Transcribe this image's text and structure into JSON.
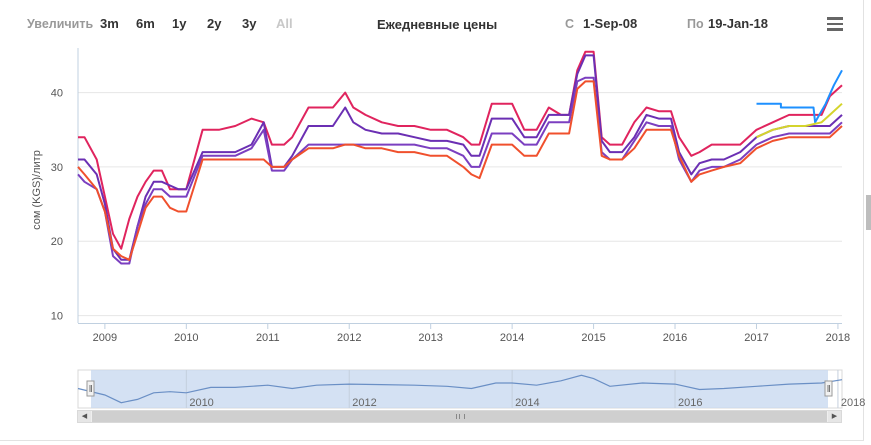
{
  "toolbar": {
    "zoom_label": "Увеличить",
    "ranges": [
      "3m",
      "6m",
      "1y",
      "2y",
      "3y",
      "All"
    ],
    "title": "Ежедневные цены",
    "from_label": "С",
    "from_value": "1-Sep-08",
    "to_label": "По",
    "to_value": "19-Jan-18"
  },
  "chart_data": {
    "type": "line",
    "title": "Ежедневные цены",
    "ylabel": "сом (KGS)/литр",
    "xlabel": "",
    "xlim": [
      2008.67,
      2018.05
    ],
    "ylim": [
      9,
      46
    ],
    "yticks": [
      10,
      20,
      30,
      40
    ],
    "x_tick_labels": [
      "2009",
      "2010",
      "2011",
      "2012",
      "2013",
      "2014",
      "2015",
      "2016",
      "2017",
      "2018"
    ],
    "x_tick_positions": [
      2009,
      2010,
      2011,
      2012,
      2013,
      2014,
      2015,
      2016,
      2017,
      2018
    ],
    "navigator_labels": [
      "2010",
      "2012",
      "2014",
      "2016",
      "2018"
    ],
    "navigator_positions": [
      2010,
      2012,
      2014,
      2016,
      2018
    ],
    "grid": true,
    "series": [
      {
        "color": "#e0245e",
        "x": [
          2008.67,
          2008.75,
          2008.9,
          2009.0,
          2009.1,
          2009.2,
          2009.3,
          2009.4,
          2009.5,
          2009.6,
          2009.7,
          2009.8,
          2009.9,
          2010.0,
          2010.2,
          2010.3,
          2010.4,
          2010.6,
          2010.8,
          2010.95,
          2011.05,
          2011.2,
          2011.3,
          2011.5,
          2011.6,
          2011.8,
          2011.95,
          2012.05,
          2012.2,
          2012.4,
          2012.6,
          2012.8,
          2013.0,
          2013.2,
          2013.4,
          2013.5,
          2013.6,
          2013.75,
          2013.85,
          2014.0,
          2014.15,
          2014.3,
          2014.45,
          2014.6,
          2014.7,
          2014.8,
          2014.9,
          2015.0,
          2015.1,
          2015.2,
          2015.35,
          2015.5,
          2015.65,
          2015.8,
          2015.95,
          2016.05,
          2016.2,
          2016.3,
          2016.45,
          2016.6,
          2016.8,
          2017.0,
          2017.2,
          2017.4,
          2017.6,
          2017.8,
          2017.9,
          2018.05
        ],
        "y": [
          34,
          34,
          31,
          26,
          21,
          19,
          23,
          26,
          28,
          29.5,
          29.5,
          27,
          27,
          27,
          35,
          35,
          35,
          35.5,
          36.5,
          36,
          33,
          33,
          34,
          38,
          38,
          38,
          40,
          38,
          37,
          36,
          35.5,
          35.5,
          35,
          35,
          34,
          33,
          33,
          38.5,
          38.5,
          38.5,
          35,
          35,
          38,
          37,
          37,
          43,
          45.5,
          45.5,
          34,
          33,
          33,
          36,
          38,
          37.5,
          37.5,
          34,
          31.5,
          32,
          33,
          33,
          33,
          35,
          36,
          37,
          37,
          37,
          39.5,
          41
        ]
      },
      {
        "color": "#6b2fb3",
        "x": [
          2008.67,
          2008.75,
          2008.9,
          2009.0,
          2009.1,
          2009.2,
          2009.3,
          2009.4,
          2009.5,
          2009.6,
          2009.7,
          2009.8,
          2009.9,
          2010.0,
          2010.2,
          2010.3,
          2010.4,
          2010.6,
          2010.8,
          2010.95,
          2011.05,
          2011.2,
          2011.3,
          2011.5,
          2011.6,
          2011.8,
          2011.95,
          2012.05,
          2012.2,
          2012.4,
          2012.6,
          2012.8,
          2013.0,
          2013.2,
          2013.4,
          2013.5,
          2013.6,
          2013.75,
          2013.85,
          2014.0,
          2014.15,
          2014.3,
          2014.45,
          2014.6,
          2014.7,
          2014.8,
          2014.9,
          2015.0,
          2015.1,
          2015.2,
          2015.35,
          2015.5,
          2015.65,
          2015.8,
          2015.95,
          2016.05,
          2016.2,
          2016.3,
          2016.45,
          2016.6,
          2016.8,
          2017.0,
          2017.2,
          2017.4,
          2017.6,
          2017.8,
          2017.9,
          2018.05
        ],
        "y": [
          31,
          31,
          29,
          25,
          19,
          17.5,
          17.5,
          22,
          26,
          28,
          28,
          27.5,
          27,
          27,
          32,
          32,
          32,
          32,
          33,
          36,
          30,
          30,
          31.5,
          35.5,
          35.5,
          35.5,
          38,
          36,
          35,
          34.5,
          34.5,
          34,
          33.5,
          33.5,
          33,
          31.5,
          31.5,
          36.5,
          36.5,
          36.5,
          34,
          34,
          37,
          37,
          37,
          42.5,
          45,
          45,
          33.5,
          32,
          32,
          34,
          37,
          36.5,
          36.5,
          32,
          29,
          30.5,
          31,
          31,
          32,
          34,
          35,
          35.5,
          35.5,
          35.5,
          35.5,
          37
        ]
      },
      {
        "color": "#7b3fc0",
        "x": [
          2008.67,
          2008.75,
          2008.9,
          2009.0,
          2009.1,
          2009.2,
          2009.3,
          2009.4,
          2009.5,
          2009.6,
          2009.7,
          2009.8,
          2009.9,
          2010.0,
          2010.2,
          2010.3,
          2010.4,
          2010.6,
          2010.8,
          2010.95,
          2011.05,
          2011.2,
          2011.3,
          2011.5,
          2011.6,
          2011.8,
          2011.95,
          2012.05,
          2012.2,
          2012.4,
          2012.6,
          2012.8,
          2013.0,
          2013.2,
          2013.4,
          2013.5,
          2013.6,
          2013.75,
          2013.85,
          2014.0,
          2014.15,
          2014.3,
          2014.45,
          2014.6,
          2014.7,
          2014.8,
          2014.9,
          2015.0,
          2015.1,
          2015.2,
          2015.35,
          2015.5,
          2015.65,
          2015.8,
          2015.95,
          2016.05,
          2016.2,
          2016.3,
          2016.45,
          2016.6,
          2016.8,
          2017.0,
          2017.2,
          2017.4,
          2017.6,
          2017.8,
          2017.9,
          2018.05
        ],
        "y": [
          29,
          28,
          27,
          24,
          18,
          17,
          17,
          22,
          25,
          27,
          27,
          26,
          26,
          26,
          31.5,
          31.5,
          31.5,
          31.5,
          32.5,
          35,
          29.5,
          29.5,
          31,
          33,
          33,
          33,
          33,
          33,
          33,
          33,
          33,
          33,
          32.5,
          32.5,
          31.5,
          30,
          30,
          34.5,
          34.5,
          34.5,
          33,
          33,
          36,
          36,
          36,
          41.5,
          42,
          42,
          32,
          31,
          31,
          33.5,
          36,
          35.5,
          35.5,
          31,
          28,
          29.5,
          30,
          30,
          31,
          33,
          34,
          34.5,
          34.5,
          34.5,
          34.5,
          36
        ]
      },
      {
        "color": "#f0502d",
        "x": [
          2008.67,
          2008.75,
          2008.9,
          2009.0,
          2009.1,
          2009.2,
          2009.3,
          2009.4,
          2009.5,
          2009.6,
          2009.7,
          2009.8,
          2009.9,
          2010.0,
          2010.2,
          2010.3,
          2010.4,
          2010.6,
          2010.8,
          2010.95,
          2011.05,
          2011.2,
          2011.3,
          2011.5,
          2011.6,
          2011.8,
          2011.95,
          2012.05,
          2012.2,
          2012.4,
          2012.6,
          2012.8,
          2013.0,
          2013.2,
          2013.4,
          2013.5,
          2013.6,
          2013.75,
          2013.85,
          2014.0,
          2014.15,
          2014.3,
          2014.45,
          2014.6,
          2014.7,
          2014.8,
          2014.9,
          2015.0,
          2015.1,
          2015.2,
          2015.35,
          2015.5,
          2015.65,
          2015.8,
          2015.95,
          2016.05,
          2016.2,
          2016.3,
          2016.45,
          2016.6,
          2016.8,
          2017.0,
          2017.2,
          2017.4,
          2017.6,
          2017.8,
          2017.9,
          2018.05
        ],
        "y": [
          30,
          29,
          27,
          24,
          19,
          18,
          17.5,
          21,
          24.5,
          26,
          26,
          24.5,
          24,
          24,
          31,
          31,
          31,
          31,
          31,
          31,
          30,
          30,
          31,
          32.5,
          32.5,
          32.5,
          33,
          33,
          32.5,
          32.5,
          32,
          32,
          31.5,
          31.5,
          30,
          29,
          28.5,
          33,
          33,
          33,
          31.5,
          31.5,
          34.5,
          34.5,
          34.5,
          40.5,
          41.5,
          41.5,
          31.5,
          31,
          31,
          32.5,
          35,
          35,
          35,
          31.5,
          28,
          29,
          29.5,
          30,
          30.5,
          32.5,
          33.5,
          34,
          34,
          34,
          34,
          35.5
        ]
      },
      {
        "color": "#1e90ff",
        "x": [
          2017.0,
          2017.3,
          2017.3,
          2017.7,
          2017.72,
          2017.85,
          2017.95,
          2018.05
        ],
        "y": [
          38.5,
          38.5,
          38,
          38,
          36,
          38.5,
          41,
          43
        ]
      },
      {
        "color": "#d4d42c",
        "x": [
          2017.0,
          2017.2,
          2017.4,
          2017.6,
          2017.8,
          2017.9,
          2018.05
        ],
        "y": [
          34,
          35,
          35.5,
          35.5,
          36,
          37,
          38.5
        ]
      }
    ],
    "navigator": {
      "x": [
        2008.67,
        2009.0,
        2009.2,
        2009.4,
        2009.6,
        2009.8,
        2010.0,
        2010.3,
        2010.6,
        2011.0,
        2011.3,
        2011.6,
        2012.0,
        2012.4,
        2012.8,
        2013.2,
        2013.5,
        2013.8,
        2014.0,
        2014.3,
        2014.6,
        2014.85,
        2015.0,
        2015.2,
        2015.6,
        2016.0,
        2016.3,
        2016.6,
        2017.0,
        2017.4,
        2017.8,
        2018.05
      ],
      "y": [
        31,
        25,
        18,
        21,
        27,
        28,
        27,
        32,
        32,
        34,
        31,
        34,
        35,
        34.5,
        34,
        33,
        31,
        36,
        36,
        34,
        38,
        43,
        40,
        33,
        36,
        35,
        30,
        31,
        33,
        35,
        36,
        39
      ]
    }
  }
}
